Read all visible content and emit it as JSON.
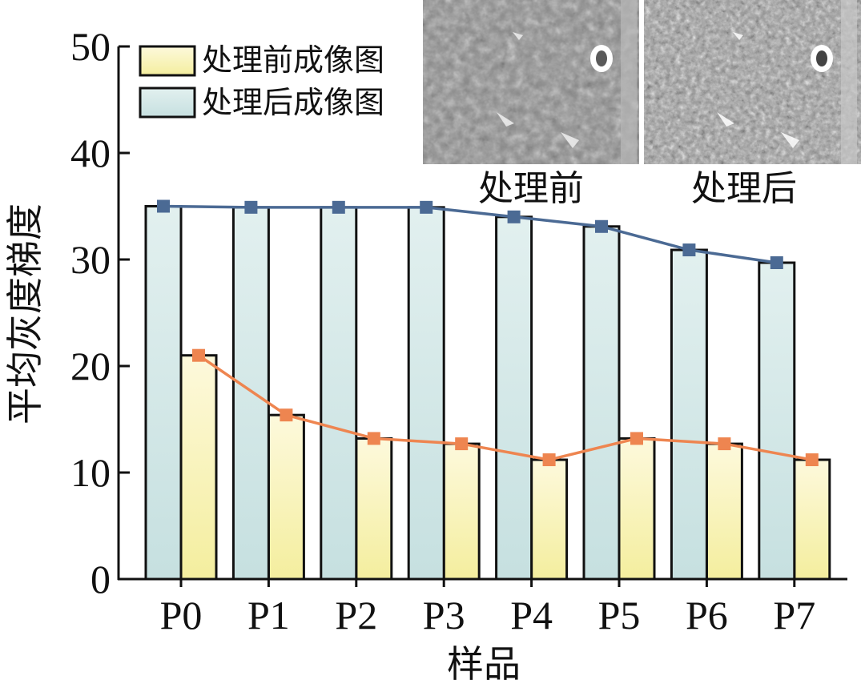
{
  "chart_data": {
    "type": "bar",
    "ylabel": "平均灰度梯度",
    "xlabel": "样品",
    "ylim": [
      0,
      50
    ],
    "yticks": [
      0,
      10,
      20,
      30,
      40,
      50
    ],
    "categories": [
      "P0",
      "P1",
      "P2",
      "P3",
      "P4",
      "P5",
      "P6",
      "P7"
    ],
    "series": [
      {
        "name": "处理前成像图",
        "values": [
          21.0,
          15.4,
          13.2,
          12.7,
          11.2,
          13.2,
          12.7,
          11.2
        ],
        "color": "#F7F3B3",
        "line_color": "#EE8550"
      },
      {
        "name": "处理后成像图",
        "values": [
          35.0,
          34.9,
          34.9,
          34.9,
          34.0,
          33.1,
          30.9,
          29.7
        ],
        "color": "#CFE5E5",
        "line_color": "#4B6A94"
      }
    ],
    "legend_position": "top-left",
    "grid": false,
    "inset_images": [
      {
        "caption": "处理前",
        "description": "grayscale microscope image of surface before processing"
      },
      {
        "caption": "处理后",
        "description": "grayscale microscope image of surface after processing, enhanced detail"
      }
    ]
  }
}
